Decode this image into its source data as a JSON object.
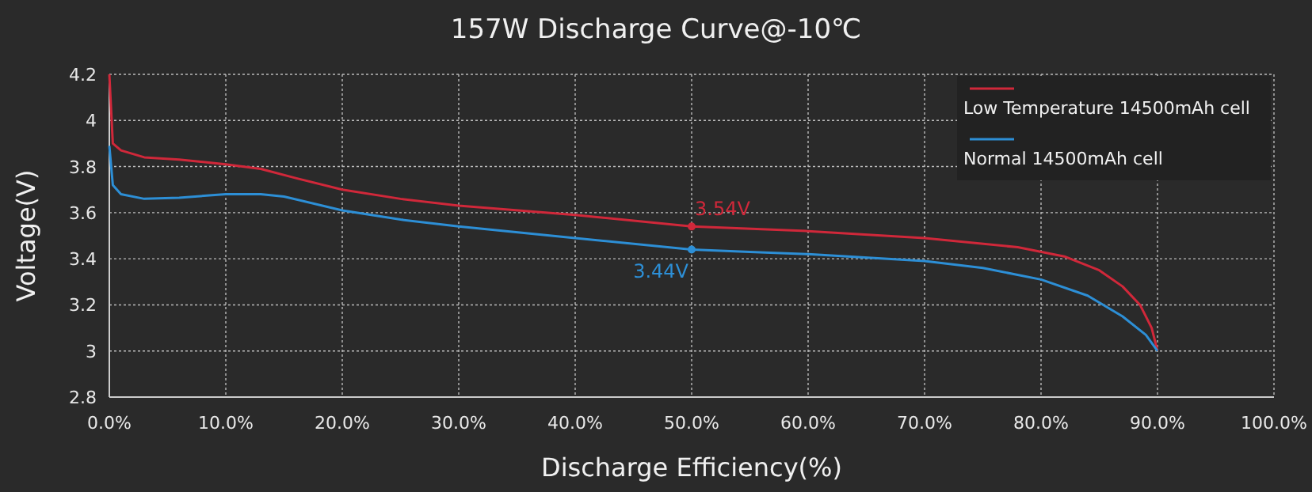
{
  "chart_data": {
    "type": "line",
    "title": "157W Discharge Curve@-10℃",
    "xlabel": "Discharge Efficiency(%)",
    "ylabel": "Voltage(V)",
    "xlim": [
      0,
      100
    ],
    "xticks": [
      {
        "value": 0,
        "label": "0.0%"
      },
      {
        "value": 10,
        "label": "10.0%"
      },
      {
        "value": 20,
        "label": "20.0%"
      },
      {
        "value": 30,
        "label": "30.0%"
      },
      {
        "value": 40,
        "label": "40.0%"
      },
      {
        "value": 50,
        "label": "50.0%"
      },
      {
        "value": 60,
        "label": "60.0%"
      },
      {
        "value": 70,
        "label": "70.0%"
      },
      {
        "value": 80,
        "label": "80.0%"
      },
      {
        "value": 90,
        "label": "90.0%"
      },
      {
        "value": 100,
        "label": "100.0%"
      }
    ],
    "ylim": [
      2.8,
      4.2
    ],
    "yticks": [
      2.8,
      3,
      3.2,
      3.4,
      3.6,
      3.8,
      4,
      4.2
    ],
    "grid": true,
    "legend": "top right",
    "marker": "none",
    "line_style": "solid",
    "series": [
      {
        "name": "Low Temperature 14500mAh cell",
        "color": "#d0283a",
        "x": [
          0,
          0.3,
          1,
          3,
          6,
          10,
          13,
          16,
          20,
          25,
          30,
          40,
          50,
          60,
          70,
          78,
          82,
          85,
          87,
          88.5,
          89.5,
          90
        ],
        "values": [
          4.2,
          3.9,
          3.87,
          3.84,
          3.83,
          3.81,
          3.79,
          3.75,
          3.7,
          3.66,
          3.63,
          3.59,
          3.54,
          3.52,
          3.49,
          3.45,
          3.41,
          3.35,
          3.28,
          3.2,
          3.1,
          3.0
        ]
      },
      {
        "name": "Normal 14500mAh cell",
        "color": "#2d8fd6",
        "x": [
          0,
          0.3,
          1,
          3,
          6,
          10,
          13,
          15,
          20,
          25,
          30,
          40,
          50,
          55,
          60,
          70,
          75,
          80,
          84,
          87,
          89,
          90
        ],
        "values": [
          3.89,
          3.72,
          3.68,
          3.66,
          3.665,
          3.68,
          3.68,
          3.67,
          3.61,
          3.57,
          3.54,
          3.49,
          3.44,
          3.43,
          3.42,
          3.39,
          3.36,
          3.31,
          3.24,
          3.15,
          3.07,
          3.0
        ]
      }
    ],
    "annotations": [
      {
        "text": "3.54V",
        "x": 50,
        "y": 3.54
      },
      {
        "text": "3.44V",
        "x": 50,
        "y": 3.44
      }
    ]
  }
}
